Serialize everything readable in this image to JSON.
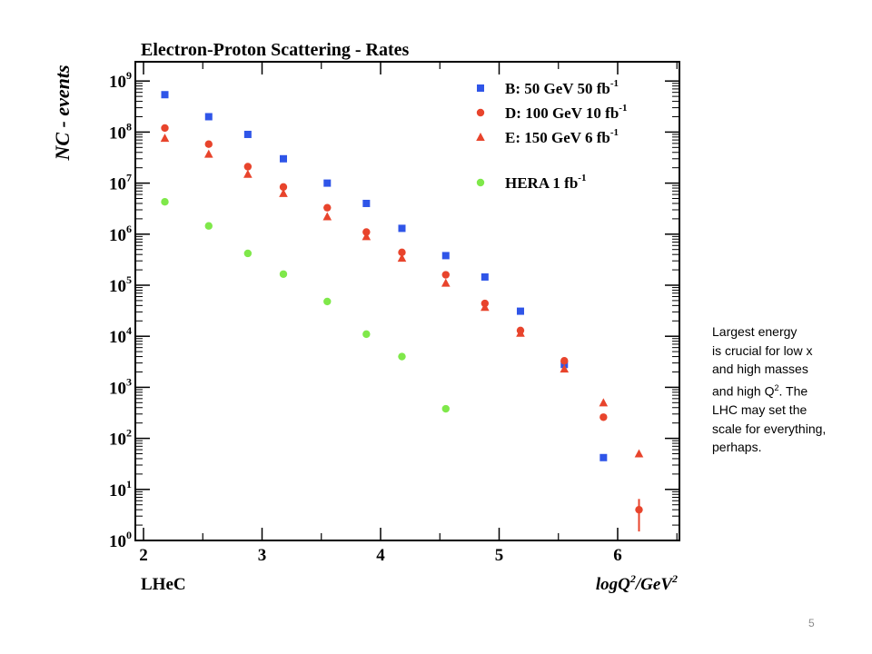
{
  "chart_data": {
    "type": "scatter",
    "title": "Electron-Proton Scattering - Rates",
    "xlabel": "logQ",
    "xlabel_sup": "2",
    "xlabel_unit": "/GeV",
    "xlabel_unit_sup": "2",
    "ylabel": "NC - events",
    "corner_label": "LHeC",
    "xlim": [
      2,
      6.5
    ],
    "ylim": [
      1,
      1000000000
    ],
    "yscale": "log",
    "x_ticks": [
      "2",
      "3",
      "4",
      "5",
      "6"
    ],
    "y_ticks": [
      {
        "base": "10",
        "exp": "0"
      },
      {
        "base": "10",
        "exp": "1"
      },
      {
        "base": "10",
        "exp": "2"
      },
      {
        "base": "10",
        "exp": "3"
      },
      {
        "base": "10",
        "exp": "4"
      },
      {
        "base": "10",
        "exp": "5"
      },
      {
        "base": "10",
        "exp": "6"
      },
      {
        "base": "10",
        "exp": "7"
      },
      {
        "base": "10",
        "exp": "8"
      },
      {
        "base": "10",
        "exp": "9"
      }
    ],
    "legend_position": "top-right",
    "series": [
      {
        "name": "B: 50 GeV 50 fb",
        "name_sup": "-1",
        "marker": "square",
        "color": "#2f55e8",
        "x": [
          2.18,
          2.55,
          2.88,
          3.18,
          3.55,
          3.88,
          4.18,
          4.55,
          4.88,
          5.18,
          5.55,
          5.88
        ],
        "y": [
          540000000,
          200000000,
          90000000,
          30000000,
          10000000,
          4000000,
          1300000,
          380000,
          145000,
          31000,
          2800,
          42
        ]
      },
      {
        "name": "D: 100 GeV 10 fb",
        "name_sup": "-1",
        "marker": "circle",
        "color": "#e8442c",
        "x": [
          2.18,
          2.55,
          2.88,
          3.18,
          3.55,
          3.88,
          4.18,
          4.55,
          4.88,
          5.18,
          5.55,
          5.88,
          6.18
        ],
        "y": [
          120000000,
          58000000,
          21000000,
          8400000,
          3300000,
          1100000,
          440000,
          160000,
          44000,
          13000,
          3300,
          260,
          4
        ],
        "error_bars": [
          {
            "x": 6.18,
            "low": 1.5,
            "high": 6.5
          }
        ]
      },
      {
        "name": "E: 150 GeV 6 fb",
        "name_sup": "-1",
        "marker": "triangle",
        "color": "#e8442c",
        "x": [
          2.18,
          2.55,
          2.88,
          3.18,
          3.55,
          3.88,
          4.18,
          4.55,
          4.88,
          5.18,
          5.55,
          5.88,
          6.18
        ],
        "y": [
          76000000,
          37000000,
          15000000,
          6300000,
          2200000,
          900000,
          340000,
          110000,
          37000,
          11500,
          2300,
          500,
          50
        ]
      },
      {
        "name": "HERA  1 fb",
        "name_sup": "-1",
        "marker": "circle",
        "color": "#7fe84a",
        "x": [
          2.18,
          2.55,
          2.88,
          3.18,
          3.55,
          3.88,
          4.18,
          4.55
        ],
        "y": [
          4300000,
          1450000,
          420000,
          165000,
          48000,
          11000,
          4000,
          380
        ]
      }
    ]
  },
  "side_note": {
    "line1": "Largest energy",
    "line2": "is crucial for low x",
    "line3": "and high masses",
    "line4_pre": "and high Q",
    "line4_sup": "2",
    "line4_post": ". The",
    "line5": "LHC may set the",
    "line6": "scale for everything,",
    "line7": "perhaps."
  },
  "page_number": "5"
}
